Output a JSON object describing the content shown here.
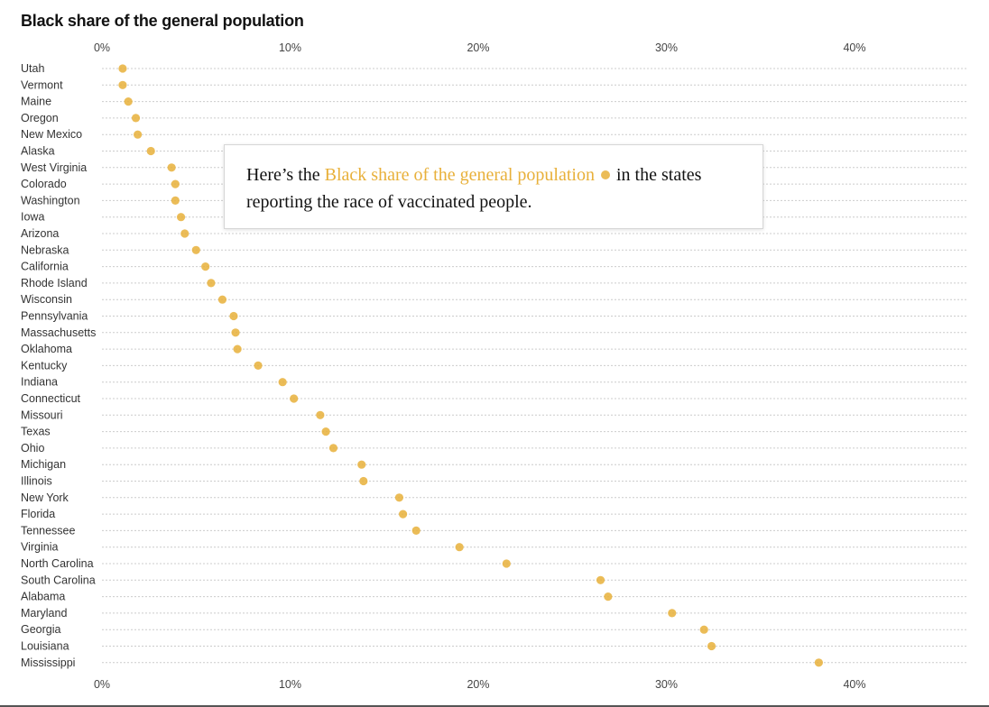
{
  "title": "Black share of the general population",
  "annotation": {
    "before": "Here’s the ",
    "highlight": "Black share of the general population",
    "after": " in the states reporting the race of vaccinated people."
  },
  "colors": {
    "dot": "#e8b03a",
    "highlight": "#e8b03a"
  },
  "chart_data": {
    "type": "scatter",
    "title": "Black share of the general population",
    "xlabel": "",
    "ylabel": "",
    "xlim": [
      0,
      46
    ],
    "xticks": [
      0,
      10,
      20,
      30,
      40
    ],
    "xtick_labels": [
      "0%",
      "10%",
      "20%",
      "30%",
      "40%"
    ],
    "grid": "dotted row lines",
    "categories": [
      "Utah",
      "Vermont",
      "Maine",
      "Oregon",
      "New Mexico",
      "Alaska",
      "West Virginia",
      "Colorado",
      "Washington",
      "Iowa",
      "Arizona",
      "Nebraska",
      "California",
      "Rhode Island",
      "Wisconsin",
      "Pennsylvania",
      "Massachusetts",
      "Oklahoma",
      "Kentucky",
      "Indiana",
      "Connecticut",
      "Missouri",
      "Texas",
      "Ohio",
      "Michigan",
      "Illinois",
      "New York",
      "Florida",
      "Tennessee",
      "Virginia",
      "North Carolina",
      "South Carolina",
      "Alabama",
      "Maryland",
      "Georgia",
      "Louisiana",
      "Mississippi"
    ],
    "values": [
      1.1,
      1.1,
      1.4,
      1.8,
      1.9,
      2.6,
      3.7,
      3.9,
      3.9,
      4.2,
      4.4,
      5.0,
      5.5,
      5.8,
      6.4,
      7.0,
      7.1,
      7.2,
      8.3,
      9.6,
      10.2,
      11.6,
      11.9,
      12.3,
      13.8,
      13.9,
      15.8,
      16.0,
      16.7,
      19.0,
      21.5,
      26.5,
      26.9,
      30.3,
      32.0,
      32.4,
      38.1
    ]
  }
}
